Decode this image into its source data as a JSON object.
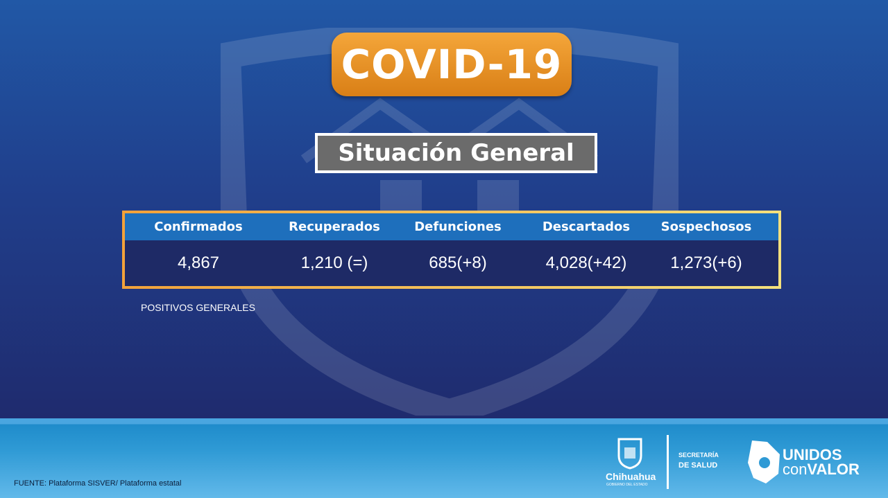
{
  "title": "COVID-19",
  "subtitle": "Situación General",
  "table": {
    "headers": [
      "Confirmados",
      "Recuperados",
      "Defunciones",
      "Descartados",
      "Sospechosos"
    ],
    "values": [
      "4,867",
      "1,210 (=)",
      "685(+8)",
      "4,028(+42)",
      "1,273(+6)"
    ]
  },
  "note": "POSITIVOS GENERALES",
  "footer": {
    "source": "FUENTE: Plataforma SISVER/ Plataforma estatal",
    "chihuahua": "Chihuahua",
    "gobierno": "GOBIERNO DEL ESTADO",
    "secretaria": "SECRETARÍA",
    "salud": "DE SALUD",
    "unidos": "UNIDOS",
    "con": "con",
    "valor": "VALOR"
  },
  "colors": {
    "accent": "#e8901f",
    "header": "#1e6fbc",
    "table_bg": "#1e2a66"
  }
}
